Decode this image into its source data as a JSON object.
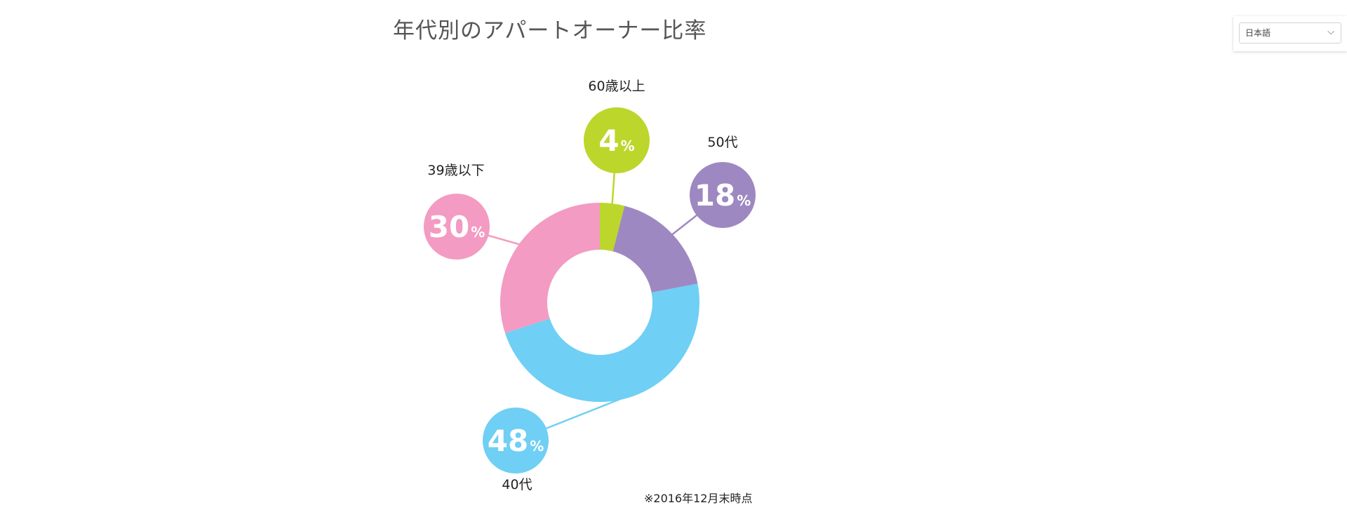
{
  "page": {
    "title": "年代別のアパートオーナー比率"
  },
  "language_select": {
    "selected": "日本語",
    "chevron_icon": "chevron-down-icon"
  },
  "chart_data": {
    "type": "pie",
    "title": "年代別のアパートオーナー比率",
    "note": "※2016年12月末時点",
    "unit": "%",
    "slices": [
      {
        "label": "60歳以上",
        "value": 4,
        "color": "#bdd62b"
      },
      {
        "label": "50代",
        "value": 18,
        "color": "#9e88c1"
      },
      {
        "label": "40代",
        "value": 48,
        "color": "#6fcff4"
      },
      {
        "label": "39歳以下",
        "value": 30,
        "color": "#f39bc2"
      }
    ]
  }
}
